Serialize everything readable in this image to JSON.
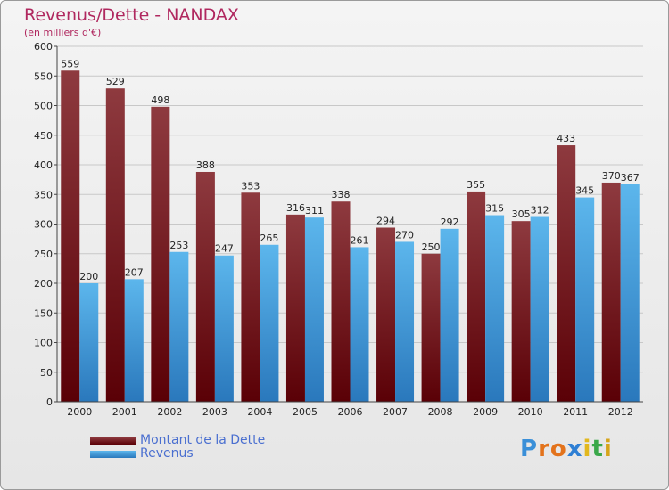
{
  "title": "Revenus/Dette - NANDAX",
  "subtitle": "(en milliers d'€)",
  "logo": "Proxiti",
  "colors": {
    "title": "#b0285f",
    "dette_top": "#8e3a3f",
    "dette_bottom": "#5a0006",
    "revenus_top": "#5cb6ec",
    "revenus_bottom": "#2a78bc",
    "legend_text": "#4a6fd0"
  },
  "legend": [
    {
      "label": "Montant de la Dette"
    },
    {
      "label": "Revenus"
    }
  ],
  "chart_data": {
    "type": "bar",
    "title": "Revenus/Dette - NANDAX",
    "subtitle": "(en milliers d'€)",
    "xlabel": "",
    "ylabel": "",
    "ylim": [
      0,
      600
    ],
    "yticks": [
      0,
      50,
      100,
      150,
      200,
      250,
      300,
      350,
      400,
      450,
      500,
      550,
      600
    ],
    "grid": true,
    "legend_position": "bottom-left",
    "categories": [
      "2000",
      "2001",
      "2002",
      "2003",
      "2004",
      "2005",
      "2006",
      "2007",
      "2008",
      "2009",
      "2010",
      "2011",
      "2012"
    ],
    "series": [
      {
        "name": "Montant de la Dette",
        "values": [
          559,
          529,
          498,
          388,
          353,
          316,
          338,
          294,
          250,
          355,
          305,
          433,
          370
        ]
      },
      {
        "name": "Revenus",
        "values": [
          200,
          207,
          253,
          247,
          265,
          311,
          261,
          270,
          292,
          315,
          312,
          345,
          367
        ]
      }
    ]
  }
}
